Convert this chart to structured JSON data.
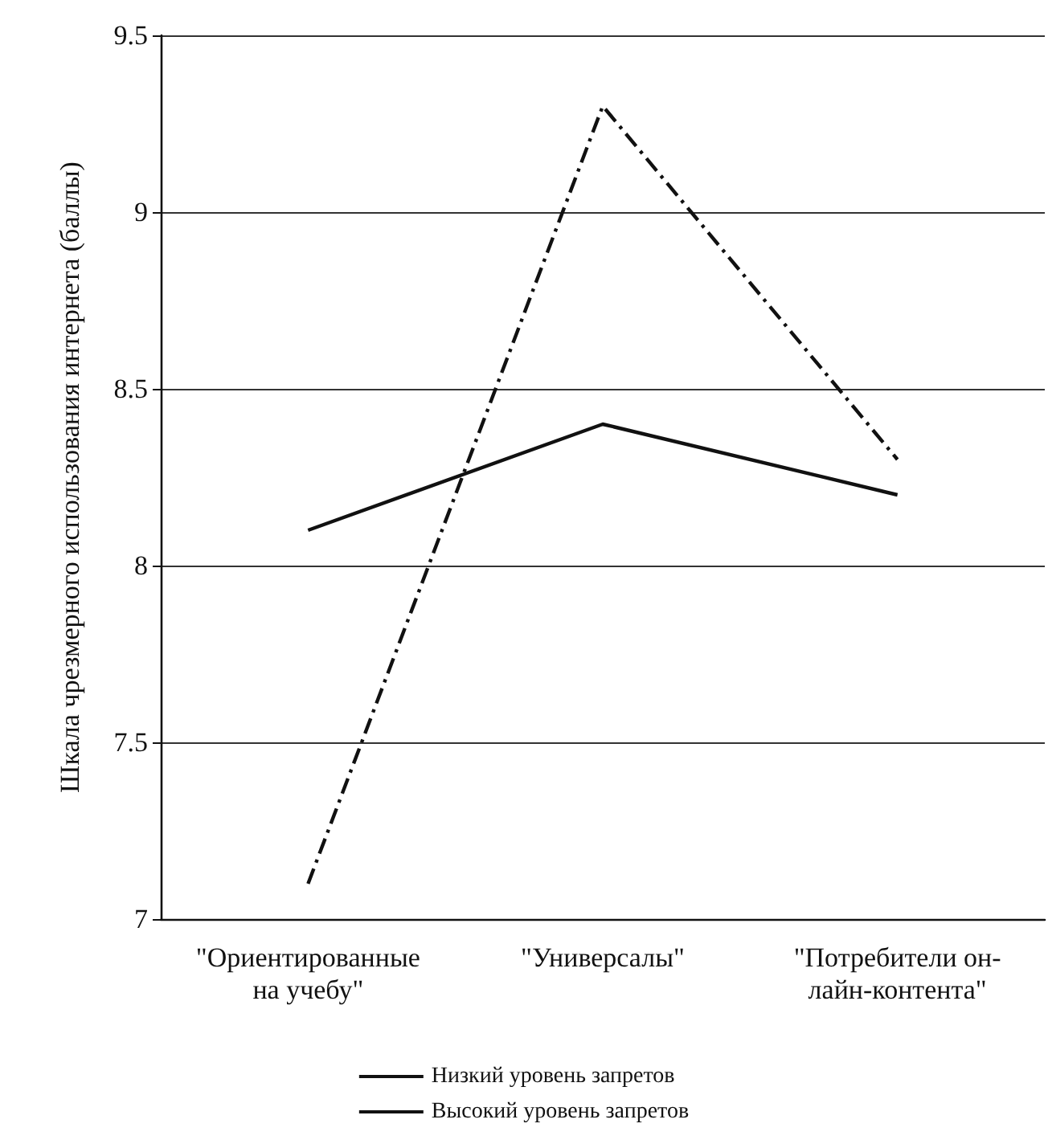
{
  "chart_data": {
    "type": "line",
    "ylabel": "Шкала чрезмерного использования интернета (баллы)",
    "categories": [
      "\"Ориентированные\nна учебу\"",
      "\"Универсалы\"",
      "\"Потребители он-\nлайн-контента\""
    ],
    "series": [
      {
        "name": "Низкий уровень запретов",
        "color": "#111111",
        "values": [
          8.1,
          8.4,
          8.2
        ],
        "line_style": "solid"
      },
      {
        "name": "Высокий уровень запретов",
        "color": "#111111",
        "values": [
          7.1,
          9.3,
          8.3
        ],
        "line_style": "dashdot"
      }
    ],
    "ylim": [
      7,
      9.5
    ],
    "yticks": [
      7,
      7.5,
      8,
      8.5,
      9,
      9.5
    ],
    "grid": "y",
    "legend": "bottom",
    "marker": "none"
  }
}
